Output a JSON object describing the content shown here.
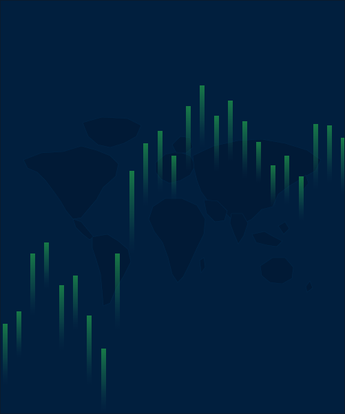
{
  "background": {
    "base_color": "#011f3e",
    "map_color": "#011a36",
    "candle_color": "#1f9a4a"
  },
  "icons": [
    "world-map-icon",
    "candlestick-icon"
  ]
}
